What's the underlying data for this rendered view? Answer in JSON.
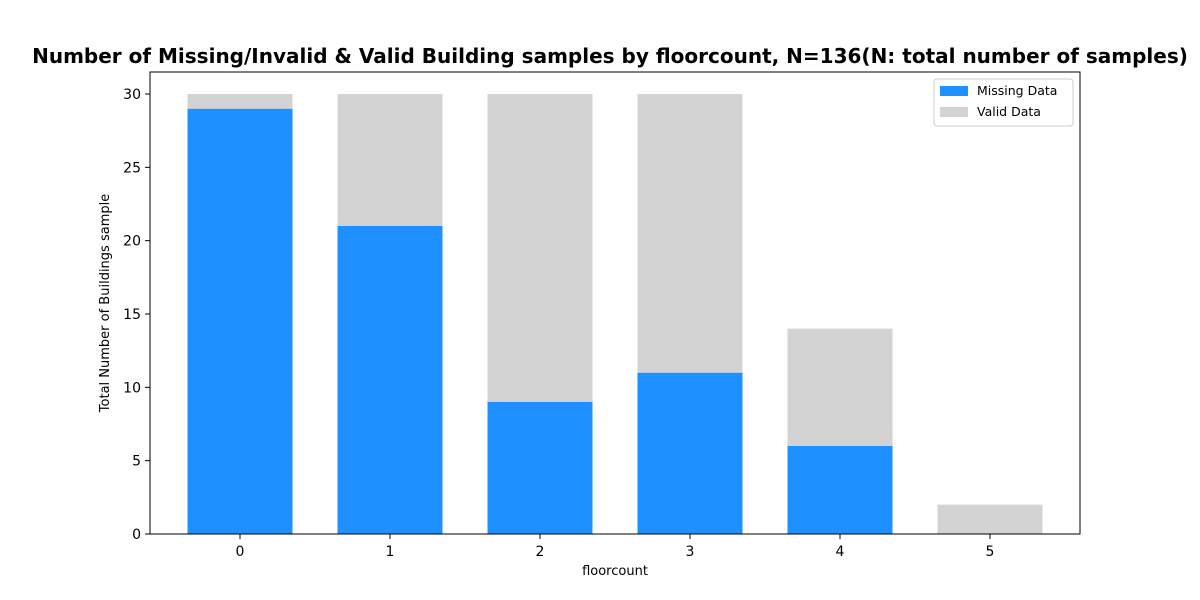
{
  "chart_data": {
    "type": "bar",
    "stacked": true,
    "title": "Number of Missing/Invalid & Valid Building samples by floorcount, N=136(N: total number of samples)",
    "xlabel": "floorcount",
    "ylabel": "Total Number of Buildings sample",
    "categories": [
      "0",
      "1",
      "2",
      "3",
      "4",
      "5"
    ],
    "series": [
      {
        "name": "Missing Data",
        "color": "#1e90ff",
        "values": [
          29,
          21,
          9,
          11,
          6,
          0
        ]
      },
      {
        "name": "Valid Data",
        "color": "#d3d3d3",
        "values": [
          1,
          9,
          21,
          19,
          8,
          2
        ]
      }
    ],
    "ylim": [
      0,
      31.5
    ],
    "yticks": [
      0,
      5,
      10,
      15,
      20,
      25,
      30
    ],
    "grid": false,
    "legend_position": "top-right"
  }
}
